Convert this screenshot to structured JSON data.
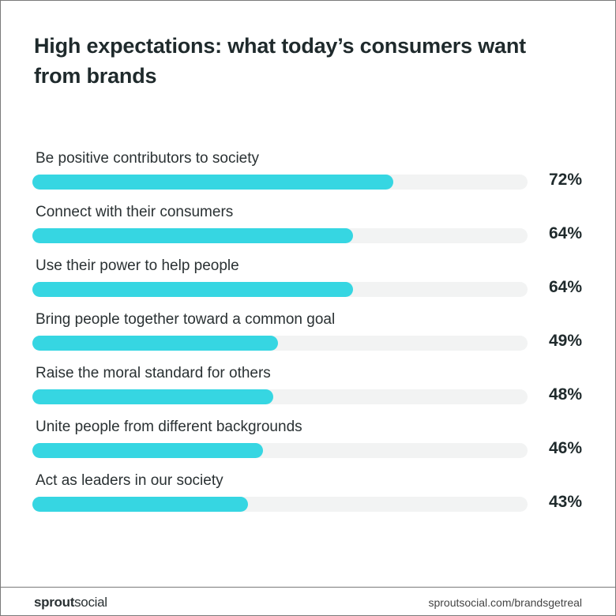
{
  "chart_data": {
    "type": "bar",
    "orientation": "horizontal",
    "title": "High expectations: what today’s consumers want from brands",
    "categories": [
      "Be positive contributors to society",
      "Connect with their consumers",
      "Use their power to help people",
      "Bring people together toward a common goal",
      "Raise the moral standard for others",
      "Unite people from different backgrounds",
      "Act as leaders in our society"
    ],
    "values": [
      72,
      64,
      64,
      49,
      48,
      46,
      43
    ],
    "value_labels": [
      "72%",
      "64%",
      "64%",
      "49%",
      "48%",
      "46%",
      "43%"
    ],
    "xlim": [
      0,
      100
    ],
    "bar_color": "#36d6e2",
    "track_color": "#f2f3f3"
  },
  "footer": {
    "logo_bold": "sprout",
    "logo_light": "social",
    "url": "sproutsocial.com/brandsgetreal"
  }
}
